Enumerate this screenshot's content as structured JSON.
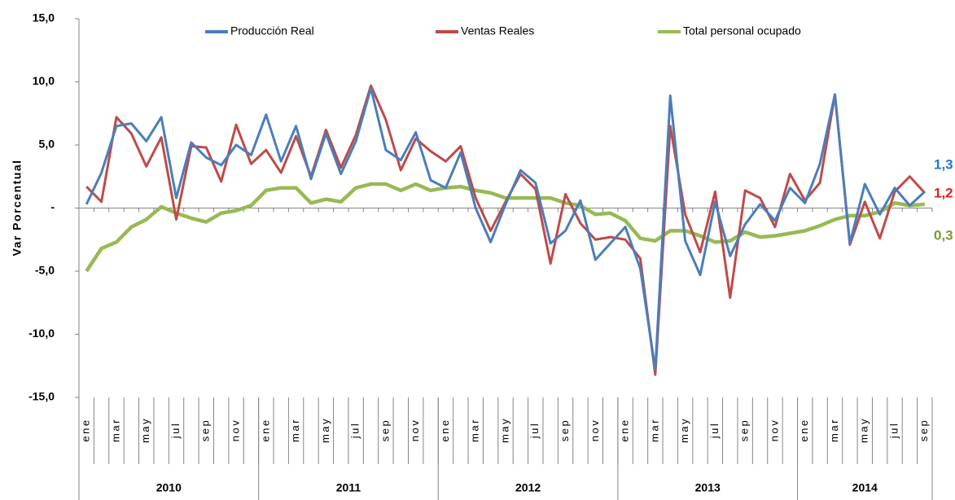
{
  "chart_data": {
    "type": "line",
    "y_label": "Var Porcentual",
    "categories": [
      "ene",
      null,
      "mar",
      null,
      "may",
      null,
      "jul",
      null,
      "sep",
      null,
      "nov",
      null,
      "ene",
      null,
      "mar",
      null,
      "may",
      null,
      "jul",
      null,
      "sep",
      null,
      "nov",
      null,
      "ene",
      null,
      "mar",
      null,
      "may",
      null,
      "jul",
      null,
      "sep",
      null,
      "nov",
      null,
      "ene",
      null,
      "mar",
      null,
      "may",
      null,
      "jul",
      null,
      "sep",
      null,
      "nov",
      null,
      "ene",
      null,
      "mar",
      null,
      "may",
      null,
      "jul",
      null,
      "sep"
    ],
    "x_groups": [
      {
        "label": "2010",
        "count": 12
      },
      {
        "label": "2011",
        "count": 12
      },
      {
        "label": "2012",
        "count": 12
      },
      {
        "label": "2013",
        "count": 12
      },
      {
        "label": "2014",
        "count": 9
      }
    ],
    "ylim": [
      -15,
      15
    ],
    "yticks": [
      {
        "value": -15,
        "label": "-15,0"
      },
      {
        "value": -10,
        "label": "-10,0"
      },
      {
        "value": -5,
        "label": "-5,0"
      },
      {
        "value": 0,
        "label": "-"
      },
      {
        "value": 5,
        "label": "5,0"
      },
      {
        "value": 10,
        "label": "10,0"
      },
      {
        "value": 15,
        "label": "15,0"
      }
    ],
    "grid": false,
    "legend": "top",
    "series": [
      {
        "name": "Producción Real",
        "color": "#4a7ebb",
        "values": [
          0.3,
          2.8,
          6.5,
          6.7,
          5.3,
          7.2,
          0.8,
          5.2,
          4.0,
          3.4,
          5.0,
          4.2,
          7.4,
          3.7,
          6.5,
          2.3,
          5.9,
          2.7,
          5.3,
          9.5,
          4.6,
          3.8,
          6.0,
          2.2,
          1.6,
          4.4,
          0.0,
          -2.7,
          0.3,
          3.0,
          2.0,
          -2.8,
          -1.8,
          0.6,
          -4.1,
          -2.8,
          -1.5,
          -4.8,
          -12.8,
          8.9,
          -2.6,
          -5.3,
          0.5,
          -3.8,
          -1.3,
          0.3,
          -1.0,
          1.6,
          0.4,
          3.5,
          9.0,
          -2.8,
          1.9,
          -0.5,
          1.6,
          0.2,
          1.3
        ],
        "value_labels": [
          null,
          null,
          null,
          null,
          null,
          null,
          null,
          null,
          null,
          null,
          null,
          null,
          null,
          null,
          null,
          null,
          null,
          null,
          null,
          null,
          null,
          null,
          null,
          null,
          null,
          null,
          null,
          null,
          null,
          null,
          null,
          null,
          null,
          null,
          null,
          null,
          null,
          null,
          null,
          null,
          null,
          null,
          null,
          null,
          null,
          null,
          null,
          null,
          null,
          null,
          null,
          null,
          null,
          null,
          null,
          null,
          "1,3"
        ]
      },
      {
        "name": "Ventas Reales",
        "color": "#be4b48",
        "values": [
          1.7,
          0.5,
          7.2,
          5.9,
          3.3,
          5.6,
          -0.9,
          4.9,
          4.8,
          2.1,
          6.6,
          3.5,
          4.6,
          2.8,
          5.7,
          2.5,
          6.2,
          3.2,
          5.8,
          9.7,
          7.0,
          3.0,
          5.5,
          4.5,
          3.7,
          4.9,
          0.8,
          -1.8,
          0.5,
          2.7,
          1.5,
          -4.4,
          1.1,
          -1.2,
          -2.5,
          -2.3,
          -2.5,
          -4.0,
          -13.2,
          6.5,
          -0.5,
          -3.5,
          1.3,
          -7.1,
          1.4,
          0.8,
          -1.5,
          2.7,
          0.6,
          2.0,
          9.0,
          -2.9,
          0.5,
          -2.4,
          1.3,
          2.5,
          1.2
        ],
        "value_labels": [
          null,
          null,
          null,
          null,
          null,
          null,
          null,
          null,
          null,
          null,
          null,
          null,
          null,
          null,
          null,
          null,
          null,
          null,
          null,
          null,
          null,
          null,
          null,
          null,
          null,
          null,
          null,
          null,
          null,
          null,
          null,
          null,
          null,
          null,
          null,
          null,
          null,
          null,
          null,
          null,
          null,
          null,
          null,
          null,
          null,
          null,
          null,
          null,
          null,
          null,
          null,
          null,
          null,
          null,
          null,
          null,
          "1,2"
        ]
      },
      {
        "name": "Total personal  ocupado",
        "color": "#98b954",
        "values": [
          -5.0,
          -3.2,
          -2.7,
          -1.5,
          -0.9,
          0.1,
          -0.4,
          -0.8,
          -1.1,
          -0.4,
          -0.2,
          0.2,
          1.4,
          1.6,
          1.6,
          0.4,
          0.7,
          0.5,
          1.6,
          1.9,
          1.9,
          1.4,
          1.9,
          1.4,
          1.6,
          1.7,
          1.4,
          1.2,
          0.8,
          0.8,
          0.8,
          0.8,
          0.4,
          0.2,
          -0.5,
          -0.4,
          -1.0,
          -2.4,
          -2.6,
          -1.8,
          -1.8,
          -2.2,
          -2.7,
          -2.6,
          -1.9,
          -2.3,
          -2.2,
          -2.0,
          -1.8,
          -1.4,
          -0.9,
          -0.6,
          -0.6,
          -0.3,
          0.4,
          0.2,
          0.3
        ],
        "value_labels": [
          null,
          null,
          null,
          null,
          null,
          null,
          null,
          null,
          null,
          null,
          null,
          null,
          null,
          null,
          null,
          null,
          null,
          null,
          null,
          null,
          null,
          null,
          null,
          null,
          null,
          null,
          null,
          null,
          null,
          null,
          null,
          null,
          null,
          null,
          null,
          null,
          null,
          null,
          null,
          null,
          null,
          null,
          null,
          null,
          null,
          null,
          null,
          null,
          null,
          null,
          null,
          null,
          null,
          null,
          null,
          null,
          "0,3"
        ]
      }
    ]
  }
}
